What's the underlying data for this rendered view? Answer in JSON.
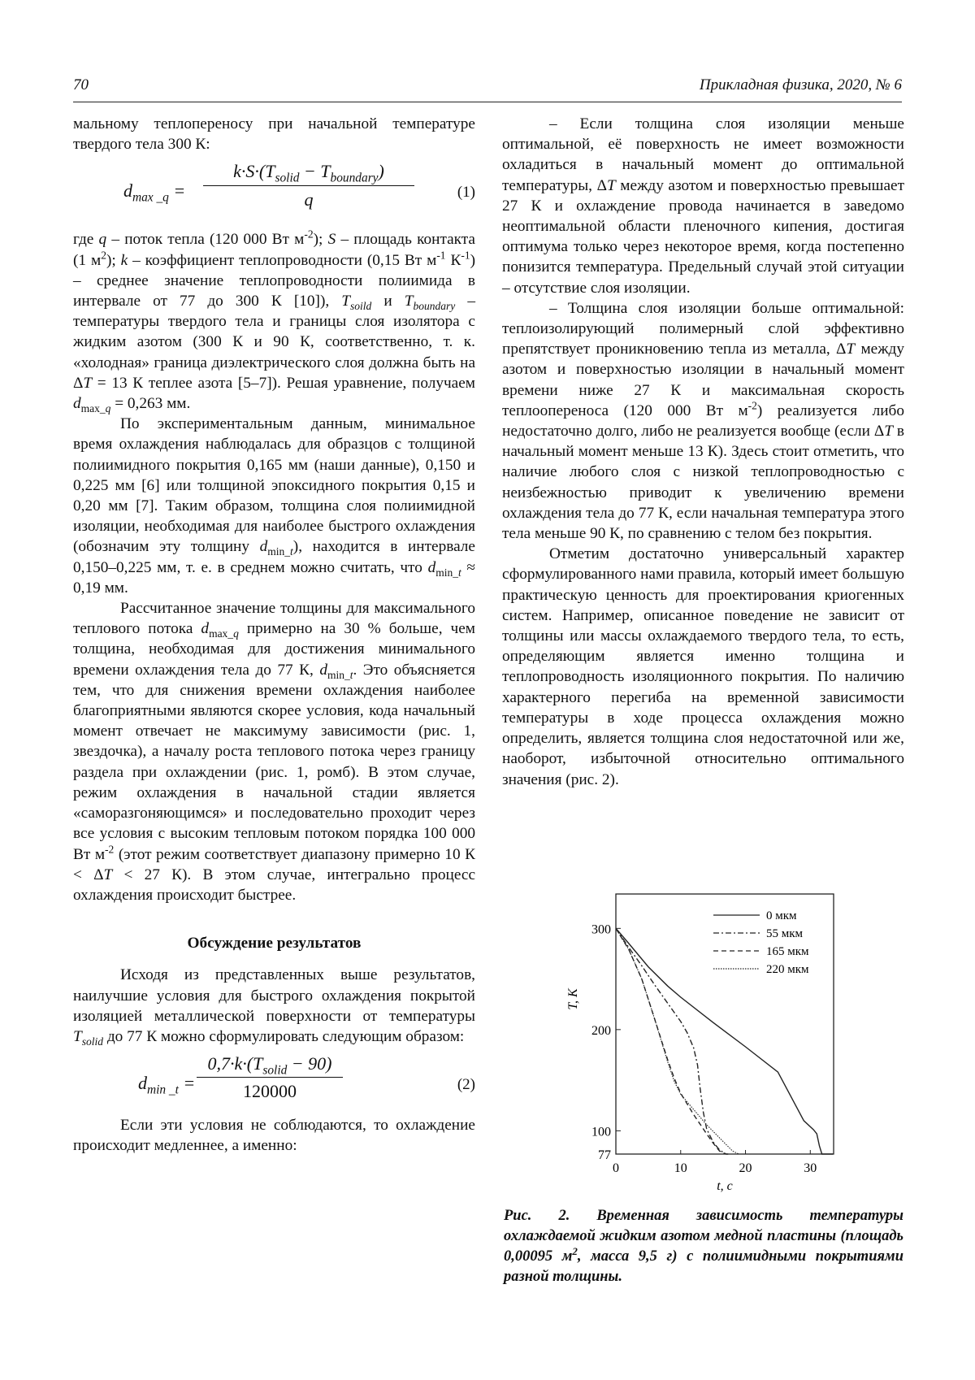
{
  "header": {
    "page_number": "70",
    "journal": "Прикладная физика, 2020, № 6"
  },
  "left_column": {
    "p1": "мальному теплопереносу при начальной температуре твердого тела 300 К:",
    "eq1": {
      "lhs": "d<sub>max _q</sub> =",
      "num": "k·S·(T<sub>solid</sub> − T<sub>boundary</sub>)",
      "den": "q",
      "number": "(1)"
    },
    "p2": "где <i>q</i> – поток тепла (120 000 Вт м<sup>-2</sup>); <i>S</i> – площадь контакта (1 м<sup>2</sup>); <i>k</i> – коэффициент теплопроводности (0,15 Вт м<sup>-1</sup> К<sup>-1</sup>) – среднее значение теплопроводности полиимида в интервале от 77 до 300 К [10]), <i>T<sub>soild</sub></i> и <i>T<sub>boundary</sub></i> – температуры твердого тела и границы слоя изолятора с жидким азотом (300 К и 90 К, соответственно, т. к. «холодная» граница диэлектрического слоя должна быть на Δ<i>T</i> = 13 К теплее азота [5–7]). Решая уравнение, получаем <i>d</i><sub>max_<i>q</i></sub> = 0,263 мм.",
    "p3": "По экспериментальным данным, минимальное время охлаждения наблюдалась для образцов с толщиной полиимидного покрытия 0,165 мм (наши данные), 0,150 и 0,225 мм [6] или толщиной эпоксидного покрытия 0,15 и 0,20 мм [7]. Таким образом, толщина слоя полиимидной изоляции, необходимая для наиболее быстрого охлаждения (обозначим эту толщину <i>d</i><sub>min_<i>t</i></sub>), находится в интервале 0,150–0,225 мм, т. е. в среднем можно считать, что <i>d</i><sub>min_<i>t</i></sub> ≈ 0,19 мм.",
    "p4": "Рассчитанное значение толщины для максимального теплового потока <i>d</i><sub>max_<i>q</i></sub> примерно на 30 % больше, чем толщина, необходимая для достижения минимального времени охлаждения тела до 77 К, <i>d</i><sub>min_<i>t</i></sub>. Это объясняется тем, что для снижения времени охлаждения наиболее благоприятными являются скорее условия, кода начальный момент отвечает не максимуму зависимости (рис. 1, звездочка), а началу роста теплового потока через границу раздела при охлаждении (рис. 1, ромб). В этом случае, режим охлаждения в начальной стадии является «саморазгоняющимся» и последовательно проходит через все условия с высоким тепловым потоком порядка 100 000 Вт м<sup>-2</sup> (этот режим соответствует диапазону примерно 10 К &lt; Δ<i>T</i> &lt; 27 К). В этом случае, интегрально процесс охлаждения происходит быстрее.",
    "heading": "Обсуждение результатов",
    "p5": "Исходя из представленных выше результатов, наилучшие условия для быстрого охлаждения покрытой изоляцией металлической поверхности от температуры <i>T<sub>solid</sub></i> до 77 К можно сформулировать следующим образом:",
    "eq2": {
      "lhs": "d<sub>min _t</sub> =",
      "num": "0,7·k·(T<sub>solid</sub> − 90)",
      "den": "120000",
      "number": "(2)"
    },
    "p6": "Если эти условия не соблюдаются, то охлаждение происходит медленнее, а именно:"
  },
  "right_column": {
    "p1": "– Если толщина слоя изоляции меньше оптимальной, её поверхность не имеет возможности охладиться в начальный момент до оптимальной температуры, Δ<i>T</i> между азотом и поверхностью превышает 27 К и охлаждение провода начинается в заведомо неоптимальной области пленочного кипения, достигая оптимума только через некоторое время, когда постепенно понизится температура. Предельный случай этой ситуации – отсутствие слоя изоляции.",
    "p2": "– Толщина слоя изоляции больше оптимальной: теплоизолирующий полимерный слой эффективно препятствует проникновению тепла из металла, Δ<i>T</i> между азотом и поверхностью изоляции в начальный момент времени ниже 27 К и максимальная скорость теплоопереноса (120 000 Вт м<sup>-2</sup>) реализуется либо недостаточно долго, либо не реализуется вообще (если Δ<i>T</i> в начальный момент меньше 13 К). Здесь стоит отметить, что наличие любого слоя с низкой теплопроводностью с неизбежностью приводит к увеличению времени охлаждения тела до 77 К, если начальная температура этого тела меньше 90 К, по сравнению с телом без покрытия.",
    "p3": "Отметим достаточно универсальный характер сформулированного нами правила, который имеет большую практическую ценность для проектирования криогенных систем. Например, описанное поведение не зависит от толщины или массы охлаждаемого твердого тела, то есть, определяющим является именно толщина и теплопроводность изоляционного покрытия. По наличию характерного перегиба на временной зависимости температуры в ходе процесса охлаждения можно определить, является толщина слоя недостаточной или же, наоборот, избыточной относительно оптимального значения (рис. 2)."
  },
  "figure": {
    "caption": "Рис. 2. Временная зависимость температуры охлаждаемой жидким азотом медной пластины (площадь 0,00095 м<sup>2</sup>, масса 9,5 г) с полиимидными покрытиями разной толщины."
  },
  "chart_data": {
    "type": "line",
    "xlabel": "t, c",
    "ylabel": "T, K",
    "xlim": [
      0,
      33.6
    ],
    "ylim": [
      77,
      334
    ],
    "xticks": [
      "0",
      "10",
      "20",
      "30"
    ],
    "yticks": [
      "77",
      "100",
      "200",
      "300"
    ],
    "legend_position": "top-right",
    "grid": false,
    "series": [
      {
        "name": "0 мкм",
        "style": "solid",
        "points": [
          [
            0,
            300
          ],
          [
            2,
            285
          ],
          [
            5,
            262
          ],
          [
            8,
            243
          ],
          [
            10,
            232
          ],
          [
            15,
            207
          ],
          [
            20,
            183
          ],
          [
            25,
            158
          ],
          [
            29,
            110
          ],
          [
            30.5,
            101
          ],
          [
            31,
            97
          ],
          [
            31.4,
            85
          ],
          [
            31.8,
            77
          ],
          [
            33.5,
            77
          ]
        ]
      },
      {
        "name": "55 мкм",
        "style": "dashdot",
        "points": [
          [
            0,
            300
          ],
          [
            2,
            281
          ],
          [
            4,
            263
          ],
          [
            6,
            244
          ],
          [
            8,
            226
          ],
          [
            10,
            208
          ],
          [
            11,
            197
          ],
          [
            12,
            182
          ],
          [
            12.6,
            165
          ],
          [
            13,
            142
          ],
          [
            13.5,
            118
          ],
          [
            14,
            102
          ],
          [
            15,
            89
          ],
          [
            16,
            81
          ],
          [
            17,
            77
          ]
        ]
      },
      {
        "name": "165 мкм",
        "style": "dashed",
        "points": [
          [
            0,
            300
          ],
          [
            2,
            279
          ],
          [
            4,
            250
          ],
          [
            6,
            210
          ],
          [
            7,
            190
          ],
          [
            8,
            170
          ],
          [
            9,
            152
          ],
          [
            10,
            137
          ],
          [
            12,
            116
          ],
          [
            14,
            97
          ],
          [
            15,
            88
          ],
          [
            16,
            80
          ],
          [
            17,
            77
          ],
          [
            17.5,
            77
          ]
        ]
      },
      {
        "name": "220 мкм",
        "style": "dotted",
        "points": [
          [
            0,
            300
          ],
          [
            2,
            279
          ],
          [
            4,
            250
          ],
          [
            6,
            210
          ],
          [
            8,
            168
          ],
          [
            9,
            149
          ],
          [
            10,
            136
          ],
          [
            12,
            121
          ],
          [
            14,
            106
          ],
          [
            16,
            93
          ],
          [
            18,
            80
          ],
          [
            19,
            77
          ],
          [
            21,
            77
          ]
        ]
      }
    ]
  }
}
